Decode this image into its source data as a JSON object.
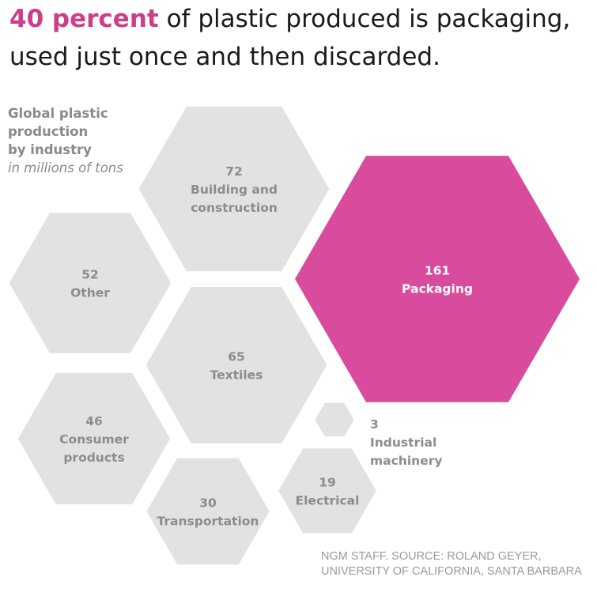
{
  "headline": {
    "accent": "40 percent",
    "rest_line1": " of plastic produced is packaging,",
    "rest_line2": "used just once and then discarded."
  },
  "colors": {
    "highlight": "#d94b9c",
    "hex_fill": "#e2e2e2",
    "hex_text": "#8c8c8c",
    "highlight_text": "#ffffff",
    "accent_text": "#cc3d8a"
  },
  "chart_data": {
    "type": "bubble-hexagon",
    "title_lines": [
      "Global plastic",
      "production",
      "by industry"
    ],
    "units": "in millions of tons",
    "highlight": "Packaging",
    "items": [
      {
        "value": 161,
        "label_lines": [
          "Packaging"
        ]
      },
      {
        "value": 72,
        "label_lines": [
          "Building and",
          "construction"
        ]
      },
      {
        "value": 65,
        "label_lines": [
          "Textiles"
        ]
      },
      {
        "value": 52,
        "label_lines": [
          "Other"
        ]
      },
      {
        "value": 46,
        "label_lines": [
          "Consumer",
          "products"
        ]
      },
      {
        "value": 30,
        "label_lines": [
          "Transportation"
        ]
      },
      {
        "value": 19,
        "label_lines": [
          "Electrical"
        ]
      },
      {
        "value": 3,
        "label_lines": [
          "Industrial",
          "machinery"
        ]
      }
    ]
  },
  "source": {
    "line1": "NGM STAFF. SOURCE: ROLAND GEYER,",
    "line2": "UNIVERSITY OF CALIFORNIA, SANTA BARBARA"
  }
}
